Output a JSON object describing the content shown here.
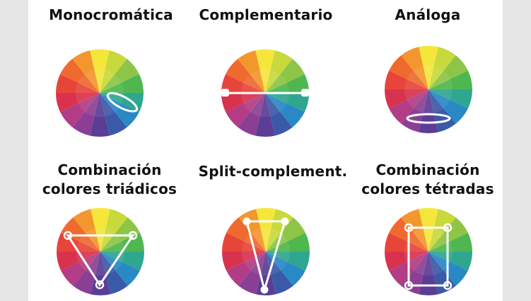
{
  "palette": [
    "#f5e63b",
    "#c8d93c",
    "#8ec546",
    "#4fb74f",
    "#2fa68f",
    "#2889c5",
    "#3a5aa8",
    "#5b3d95",
    "#8a3f94",
    "#b23c85",
    "#d8324f",
    "#e8453a",
    "#ee6a2e",
    "#f4962e"
  ],
  "overlay_color": "#ffffff",
  "schemes": [
    {
      "title": "Monocromática",
      "marker": "ellipse-side-icon"
    },
    {
      "title": "Complementario",
      "marker": "complementary-line-icon"
    },
    {
      "title": "Análoga",
      "marker": "ellipse-bottom-icon"
    },
    {
      "title_line1": "Combinación",
      "title_line2": "colores triádicos",
      "marker": "triangle-icon"
    },
    {
      "title": "Split-complement.",
      "marker": "split-triangle-icon"
    },
    {
      "title_line1": "Combinación",
      "title_line2": "colores tétradas",
      "marker": "rectangle-icon"
    }
  ]
}
